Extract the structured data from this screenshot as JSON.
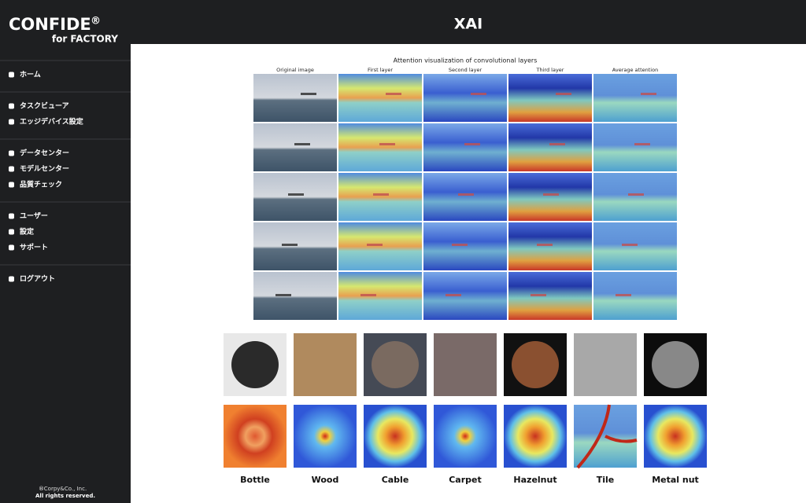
{
  "sidebar": {
    "logo": {
      "name": "CONFIDE",
      "mark": "®",
      "sub": "for FACTORY"
    },
    "menu": [
      [
        "ホーム"
      ],
      [
        "タスクビューア",
        "エッジデバイス設定"
      ],
      [
        "データセンター",
        "モデルセンター",
        "品質チェック"
      ],
      [
        "ユーザー",
        "設定",
        "サポート"
      ],
      [
        "ログアウト"
      ]
    ],
    "footer": {
      "mark": "®",
      "company": "Corpy&Co., Inc.",
      "rights": "All rights reserved."
    }
  },
  "header": {
    "title": "XAI"
  },
  "figure": {
    "title": "Attention visualization of convolutional layers",
    "columns": [
      "Original image",
      "First layer",
      "Second layer",
      "Third layer",
      "Average attention"
    ]
  },
  "samples": [
    "Bottle",
    "Wood",
    "Cable",
    "Carpet",
    "Hazelnut",
    "Tile",
    "Metal nut"
  ]
}
